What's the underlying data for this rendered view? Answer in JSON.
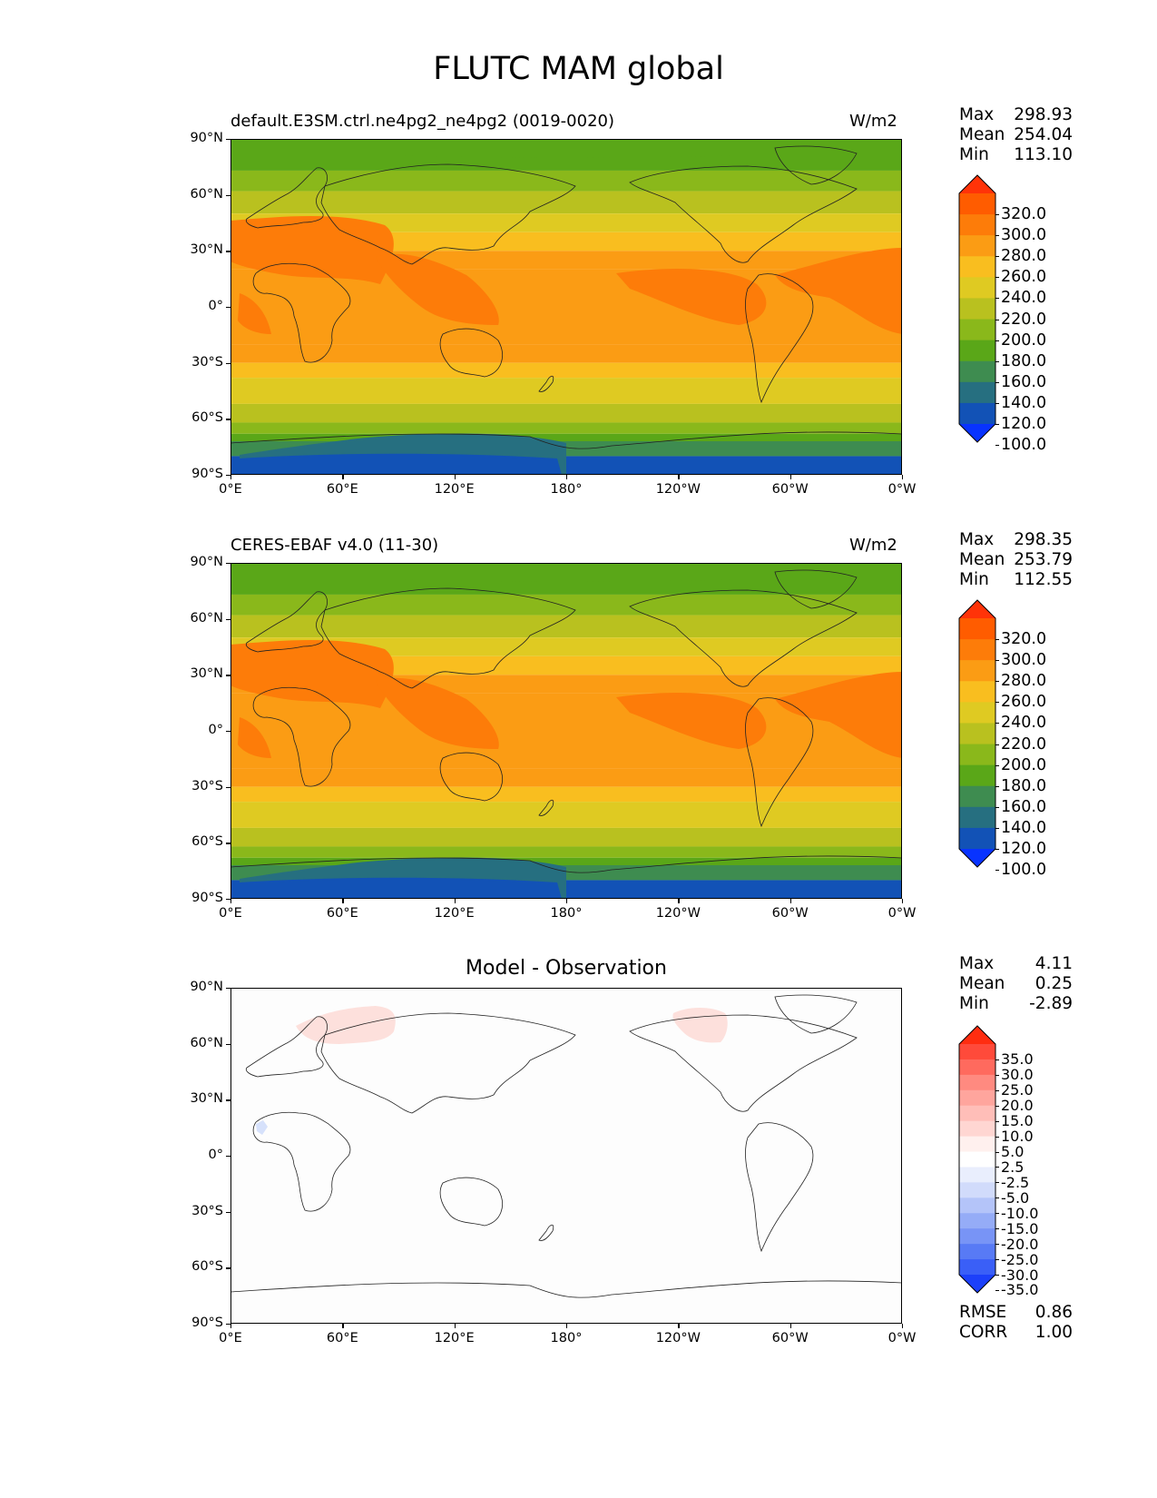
{
  "figure": {
    "title": "FLUTC MAM global"
  },
  "panels": [
    {
      "id": "model",
      "left_title": "default.E3SM.ctrl.ne4pg2_ne4pg2 (0019-0020)",
      "right_title": "W/m2",
      "center_title": "",
      "stats": {
        "max_label": "Max",
        "max_value": "298.93",
        "mean_label": "Mean",
        "mean_value": "254.04",
        "min_label": "Min",
        "min_value": "113.10"
      },
      "colorbar": {
        "levels": [
          "320.0",
          "300.0",
          "280.0",
          "260.0",
          "240.0",
          "220.0",
          "200.0",
          "180.0",
          "160.0",
          "140.0",
          "120.0",
          "100.0"
        ],
        "colors": [
          "#ff3308",
          "#ff5c00",
          "#fd7c09",
          "#fb9c14",
          "#f9be1f",
          "#dfca22",
          "#b9c11f",
          "#8ab81b",
          "#5aa718",
          "#3e8c50",
          "#266f80",
          "#1252b6",
          "#0833ff"
        ]
      }
    },
    {
      "id": "obs",
      "left_title": "CERES-EBAF v4.0 (11-30)",
      "right_title": "W/m2",
      "center_title": "",
      "stats": {
        "max_label": "Max",
        "max_value": "298.35",
        "mean_label": "Mean",
        "mean_value": "253.79",
        "min_label": "Min",
        "min_value": "112.55"
      },
      "colorbar": {
        "levels": [
          "320.0",
          "300.0",
          "280.0",
          "260.0",
          "240.0",
          "220.0",
          "200.0",
          "180.0",
          "160.0",
          "140.0",
          "120.0",
          "100.0"
        ],
        "colors": [
          "#ff3308",
          "#ff5c00",
          "#fd7c09",
          "#fb9c14",
          "#f9be1f",
          "#dfca22",
          "#b9c11f",
          "#8ab81b",
          "#5aa718",
          "#3e8c50",
          "#266f80",
          "#1252b6",
          "#0833ff"
        ]
      }
    },
    {
      "id": "diff",
      "left_title": "",
      "right_title": "",
      "center_title": "Model - Observation",
      "stats": {
        "max_label": "Max",
        "max_value": "4.11",
        "mean_label": "Mean",
        "mean_value": "0.25",
        "min_label": "Min",
        "min_value": "-2.89"
      },
      "colorbar": {
        "levels": [
          "35.0",
          "30.0",
          "25.0",
          "20.0",
          "15.0",
          "10.0",
          "5.0",
          "2.5",
          "-2.5",
          "-5.0",
          "-10.0",
          "-15.0",
          "-20.0",
          "-25.0",
          "-30.0",
          "-35.0"
        ],
        "colors": [
          "#ff2d10",
          "#ff4a3a",
          "#ff6a5e",
          "#ff8a80",
          "#ffa59d",
          "#ffbeb8",
          "#ffd6d2",
          "#fff0ee",
          "#ffffff",
          "#e9eefd",
          "#d1dbfb",
          "#b4c4f9",
          "#95acf7",
          "#7894f6",
          "#587af5",
          "#3a5ff7",
          "#1c40fa"
        ]
      },
      "error_stats": {
        "rmse_label": "RMSE",
        "rmse_value": "0.86",
        "corr_label": "CORR",
        "corr_value": "1.00"
      }
    }
  ],
  "axes": {
    "lat_ticks": [
      "90°N",
      "60°N",
      "30°N",
      "0°",
      "30°S",
      "60°S",
      "90°S"
    ],
    "lon_ticks": [
      "0°E",
      "60°E",
      "120°E",
      "180°",
      "120°W",
      "60°W",
      "0°W"
    ]
  },
  "chart_data": [
    {
      "type": "heatmap",
      "title": "default.E3SM.ctrl.ne4pg2_ne4pg2 (0019-0020)",
      "units": "W/m2",
      "lat_range": [
        -90,
        90
      ],
      "lon_range": [
        0,
        360
      ],
      "contour_levels": [
        100,
        120,
        140,
        160,
        180,
        200,
        220,
        240,
        260,
        280,
        300,
        320
      ],
      "stats": {
        "max": 298.93,
        "mean": 254.04,
        "min": 113.1
      }
    },
    {
      "type": "heatmap",
      "title": "CERES-EBAF v4.0 (11-30)",
      "units": "W/m2",
      "lat_range": [
        -90,
        90
      ],
      "lon_range": [
        0,
        360
      ],
      "contour_levels": [
        100,
        120,
        140,
        160,
        180,
        200,
        220,
        240,
        260,
        280,
        300,
        320
      ],
      "stats": {
        "max": 298.35,
        "mean": 253.79,
        "min": 112.55
      }
    },
    {
      "type": "heatmap",
      "title": "Model - Observation",
      "lat_range": [
        -90,
        90
      ],
      "lon_range": [
        0,
        360
      ],
      "contour_levels": [
        -35,
        -30,
        -25,
        -20,
        -15,
        -10,
        -5,
        -2.5,
        2.5,
        5,
        10,
        15,
        20,
        25,
        30,
        35
      ],
      "stats": {
        "max": 4.11,
        "mean": 0.25,
        "min": -2.89,
        "rmse": 0.86,
        "corr": 1.0
      }
    }
  ]
}
